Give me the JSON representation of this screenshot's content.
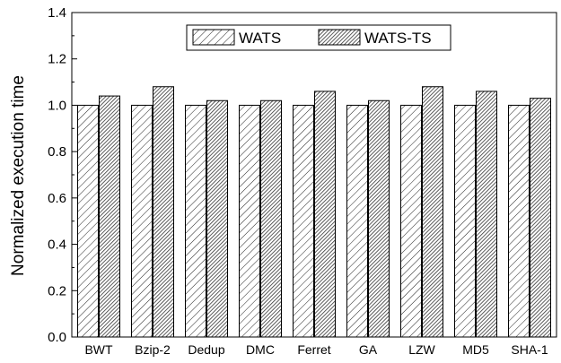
{
  "chart_data": {
    "type": "bar",
    "title": "",
    "xlabel": "",
    "ylabel": "Normalized execution time",
    "ylim": [
      0.0,
      1.4
    ],
    "yticks": [
      "0.0",
      "0.2",
      "0.4",
      "0.6",
      "0.8",
      "1.0",
      "1.2",
      "1.4"
    ],
    "grid": false,
    "legend_position": "top-center",
    "categories": [
      "BWT",
      "Bzip-2",
      "Dedup",
      "DMC",
      "Ferret",
      "GA",
      "LZW",
      "MD5",
      "SHA-1"
    ],
    "series": [
      {
        "name": "WATS",
        "values": [
          1.0,
          1.0,
          1.0,
          1.0,
          1.0,
          1.0,
          1.0,
          1.0,
          1.0
        ],
        "pattern": "sparse-diagonal-hatch"
      },
      {
        "name": "WATS-TS",
        "values": [
          1.04,
          1.08,
          1.02,
          1.02,
          1.06,
          1.02,
          1.08,
          1.06,
          1.03
        ],
        "pattern": "dense-diagonal-hatch"
      }
    ]
  }
}
